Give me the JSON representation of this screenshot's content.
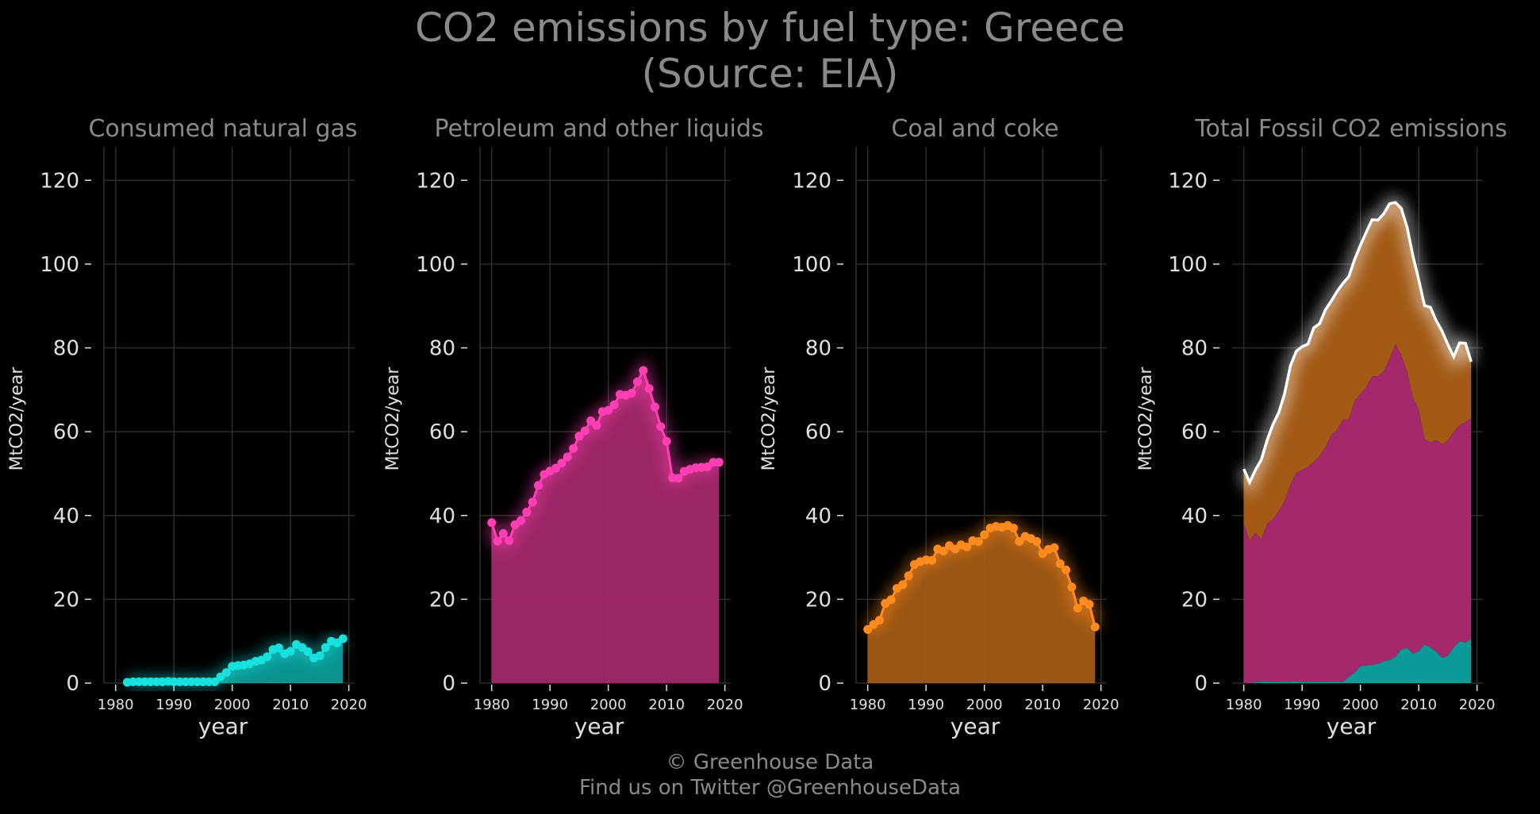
{
  "header": {
    "title_line1": "CO2 emissions by fuel type: Greece",
    "title_line2": "(Source: EIA)"
  },
  "footer": {
    "line1": "© Greenhouse Data",
    "line2": "Find us on Twitter @GreenhouseData"
  },
  "colors": {
    "background": "#000000",
    "gas": "#18e0dc",
    "gas_fill": "#0b9a96",
    "petroleum": "#ff3fb3",
    "petroleum_fill": "#a3286c",
    "coal": "#ff8a1e",
    "coal_fill": "#a35a15",
    "total": "#ffffff"
  },
  "chart_data": [
    {
      "type": "area",
      "title": "Consumed natural gas",
      "xlabel": "year",
      "ylabel": "MtCO2/year",
      "xlim": [
        1980,
        2020
      ],
      "ylim": [
        0,
        128
      ],
      "xticks": [
        1980,
        1990,
        2000,
        2010,
        2020
      ],
      "yticks": [
        0,
        20,
        40,
        60,
        80,
        100,
        120
      ],
      "grid": true,
      "series": [
        {
          "x": [
            1982,
            1983,
            1984,
            1985,
            1986,
            1987,
            1988,
            1989,
            1990,
            1991,
            1992,
            1993,
            1994,
            1995,
            1996,
            1997,
            1998,
            1999,
            2000,
            2001,
            2002,
            2003,
            2004,
            2005,
            2006,
            2007,
            2008,
            2009,
            2010,
            2011,
            2012,
            2013,
            2014,
            2015,
            2016,
            2017,
            2018,
            2019
          ],
          "values": [
            0.2,
            0.3,
            0.3,
            0.3,
            0.3,
            0.3,
            0.3,
            0.4,
            0.3,
            0.3,
            0.3,
            0.3,
            0.3,
            0.3,
            0.3,
            0.3,
            1.5,
            2.5,
            4.0,
            4.2,
            4.3,
            4.6,
            5.2,
            5.5,
            6.3,
            8.0,
            8.4,
            7.0,
            7.6,
            9.2,
            8.5,
            7.5,
            6.0,
            6.5,
            8.5,
            10.0,
            9.6,
            10.6
          ]
        }
      ]
    },
    {
      "type": "area",
      "title": "Petroleum and other liquids",
      "xlabel": "year",
      "ylabel": "MtCO2/year",
      "xlim": [
        1980,
        2020
      ],
      "ylim": [
        0,
        128
      ],
      "xticks": [
        1980,
        1990,
        2000,
        2010,
        2020
      ],
      "yticks": [
        0,
        20,
        40,
        60,
        80,
        100,
        120
      ],
      "grid": true,
      "series": [
        {
          "x": [
            1980,
            1981,
            1982,
            1983,
            1984,
            1985,
            1986,
            1987,
            1988,
            1989,
            1990,
            1991,
            1992,
            1993,
            1994,
            1995,
            1996,
            1997,
            1998,
            1999,
            2000,
            2001,
            2002,
            2003,
            2004,
            2005,
            2006,
            2007,
            2008,
            2009,
            2010,
            2011,
            2012,
            2013,
            2014,
            2015,
            2016,
            2017,
            2018,
            2019
          ],
          "values": [
            38.3,
            33.9,
            35.7,
            34.0,
            37.8,
            38.8,
            40.8,
            43.2,
            47.2,
            49.8,
            50.6,
            51.3,
            52.5,
            54.0,
            56.0,
            58.9,
            60.2,
            62.6,
            61.5,
            64.8,
            65.1,
            66.4,
            68.9,
            68.7,
            69.2,
            71.9,
            74.6,
            70.3,
            65.9,
            61.2,
            57.7,
            49.0,
            48.9,
            50.5,
            51.0,
            51.4,
            51.5,
            51.6,
            52.7,
            52.7
          ]
        }
      ]
    },
    {
      "type": "area",
      "title": "Coal and coke",
      "xlabel": "year",
      "ylabel": "MtCO2/year",
      "xlim": [
        1980,
        2020
      ],
      "ylim": [
        0,
        128
      ],
      "xticks": [
        1980,
        1990,
        2000,
        2010,
        2020
      ],
      "yticks": [
        0,
        20,
        40,
        60,
        80,
        100,
        120
      ],
      "grid": true,
      "series": [
        {
          "x": [
            1980,
            1981,
            1982,
            1983,
            1984,
            1985,
            1986,
            1987,
            1988,
            1989,
            1990,
            1991,
            1992,
            1993,
            1994,
            1995,
            1996,
            1997,
            1998,
            1999,
            2000,
            2001,
            2002,
            2003,
            2004,
            2005,
            2006,
            2007,
            2008,
            2009,
            2010,
            2011,
            2012,
            2013,
            2014,
            2015,
            2016,
            2017,
            2018,
            2019
          ],
          "values": [
            12.8,
            14.0,
            15.0,
            19.0,
            19.9,
            22.6,
            23.5,
            25.6,
            28.3,
            29.0,
            29.4,
            29.3,
            32.0,
            31.5,
            32.8,
            32.0,
            33.0,
            32.5,
            34.0,
            33.8,
            35.4,
            37.0,
            37.4,
            37.2,
            37.6,
            37.0,
            33.8,
            35.0,
            34.5,
            33.8,
            30.9,
            31.9,
            32.3,
            28.5,
            27.0,
            22.9,
            17.9,
            19.6,
            18.8,
            13.4
          ]
        }
      ]
    },
    {
      "type": "area",
      "title": "Total Fossil CO2 emissions",
      "xlabel": "year",
      "ylabel": "MtCO2/year",
      "xlim": [
        1980,
        2020
      ],
      "ylim": [
        0,
        128
      ],
      "xticks": [
        1980,
        1990,
        2000,
        2010,
        2020
      ],
      "yticks": [
        0,
        20,
        40,
        60,
        80,
        100,
        120
      ],
      "grid": true,
      "stacked": true,
      "total_line": true
    }
  ]
}
